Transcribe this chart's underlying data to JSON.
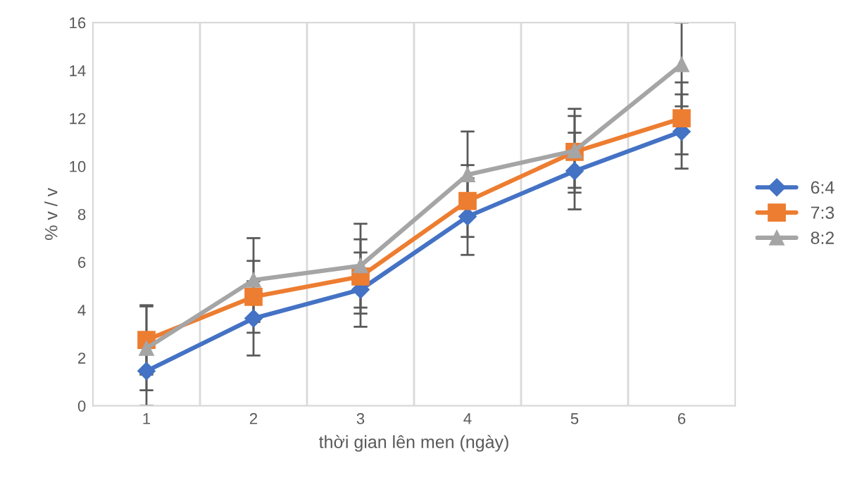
{
  "chart_data": {
    "type": "line",
    "xlabel": "thời gian lên men (ngày)",
    "ylabel": "% v / v",
    "categories": [
      "1",
      "2",
      "3",
      "4",
      "5",
      "6"
    ],
    "series": [
      {
        "name": "6:4",
        "color": "#4472c4",
        "marker": "diamond",
        "values": [
          1.45,
          3.65,
          4.85,
          7.9,
          9.8,
          11.45
        ],
        "errors": [
          1.45,
          1.55,
          1.55,
          1.6,
          1.6,
          1.55
        ]
      },
      {
        "name": "7:3",
        "color": "#ed7d31",
        "marker": "square",
        "values": [
          2.75,
          4.55,
          5.4,
          8.55,
          10.6,
          12.0
        ],
        "errors": [
          1.45,
          1.5,
          1.55,
          1.5,
          1.5,
          1.5
        ]
      },
      {
        "name": "8:2",
        "color": "#a5a5a5",
        "marker": "triangle",
        "values": [
          2.4,
          5.25,
          5.85,
          9.65,
          10.65,
          14.25
        ],
        "errors": [
          1.75,
          1.75,
          1.75,
          1.8,
          1.75,
          1.75
        ]
      }
    ],
    "ylim": [
      0,
      16
    ],
    "yticks": [
      0,
      2,
      4,
      6,
      8,
      10,
      12,
      14,
      16
    ],
    "grid": "x",
    "legend": "right"
  }
}
